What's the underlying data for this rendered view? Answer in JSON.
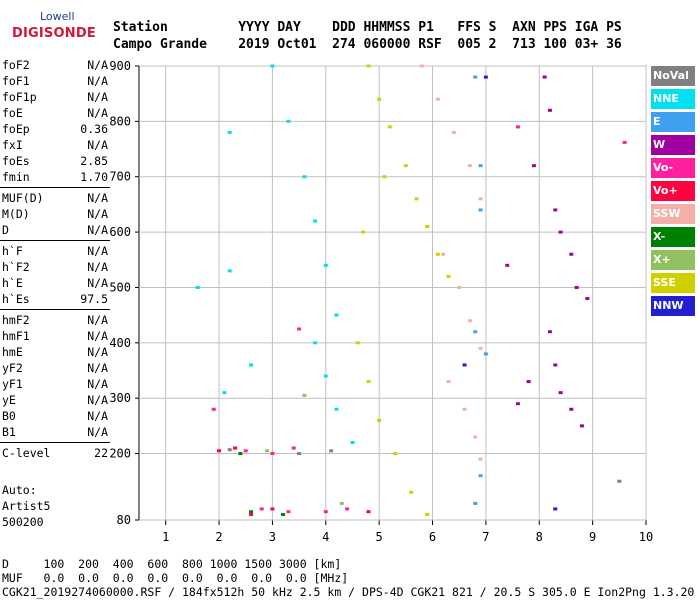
{
  "logo": {
    "line1": "Lowell",
    "line2": "DIGISONDE"
  },
  "header": {
    "line1": "Station         YYYY DAY    DDD HHMMSS P1   FFS S  AXN PPS IGA PS",
    "line2": "Campo Grande    2019 Oct01  274 060000 RSF  005 2  713 100 03+ 36"
  },
  "params": [
    {
      "name": "foF2",
      "value": "N/A"
    },
    {
      "name": "foF1",
      "value": "N/A"
    },
    {
      "name": "foF1p",
      "value": "N/A"
    },
    {
      "name": "foE",
      "value": "N/A"
    },
    {
      "name": "foEp",
      "value": "0.36"
    },
    {
      "name": "fxI",
      "value": "N/A"
    },
    {
      "name": "foEs",
      "value": "2.85"
    },
    {
      "name": "fmin",
      "value": "1.70"
    },
    {
      "name": "MUF(D)",
      "value": "N/A"
    },
    {
      "name": "M(D)",
      "value": "N/A"
    },
    {
      "name": "D",
      "value": "N/A"
    },
    {
      "name": "h`F",
      "value": "N/A"
    },
    {
      "name": "h`F2",
      "value": "N/A"
    },
    {
      "name": "h`E",
      "value": "N/A"
    },
    {
      "name": "h`Es",
      "value": "97.5"
    },
    {
      "name": "hmF2",
      "value": "N/A"
    },
    {
      "name": "hmF1",
      "value": "N/A"
    },
    {
      "name": "hmE",
      "value": "N/A"
    },
    {
      "name": "yF2",
      "value": "N/A"
    },
    {
      "name": "yF1",
      "value": "N/A"
    },
    {
      "name": "yE",
      "value": "N/A"
    },
    {
      "name": "B0",
      "value": "N/A"
    },
    {
      "name": "B1",
      "value": "N/A"
    },
    {
      "name": "C-level",
      "value": "22"
    }
  ],
  "auto": {
    "line1": "Auto:",
    "line2": "Artist5",
    "line3": "500200"
  },
  "bottom": {
    "line1": "D     100  200  400  600  800 1000 1500 3000 [km]",
    "line2": "MUF   0.0  0.0  0.0  0.0  0.0  0.0  0.0  0.0 [MHz]",
    "line3": "CGK21_2019274060000.RSF / 184fx512h 50 kHz 2.5 km / DPS-4D CGK21 821 / 20.5 S 305.0 E Ion2Png 1.3.20"
  },
  "legend": [
    {
      "label": "NoVal",
      "color": "#808080"
    },
    {
      "label": "NNE",
      "color": "#00e0f0"
    },
    {
      "label": "E",
      "color": "#40a0f0"
    },
    {
      "label": "W",
      "color": "#a000a0"
    },
    {
      "label": "Vo-",
      "color": "#ff20a0"
    },
    {
      "label": "Vo+",
      "color": "#ff0040"
    },
    {
      "label": "SSW",
      "color": "#f4b0a8"
    },
    {
      "label": "X-",
      "color": "#008000"
    },
    {
      "label": "X+",
      "color": "#90c060"
    },
    {
      "label": "SSE",
      "color": "#d0d000"
    },
    {
      "label": "NNW",
      "color": "#2020d0"
    }
  ],
  "chart_data": {
    "type": "scatter",
    "xlim": [
      0.5,
      10
    ],
    "ylim": [
      80,
      900
    ],
    "xticks": [
      1,
      2,
      3,
      4,
      5,
      6,
      7,
      8,
      9,
      10
    ],
    "yticks": [
      80,
      200,
      300,
      400,
      500,
      600,
      700,
      800,
      900
    ],
    "grid": true,
    "legend_position": "right",
    "series": [
      {
        "name": "NNE",
        "color": "#00e0f0",
        "points": [
          [
            3.0,
            900
          ],
          [
            3.3,
            800
          ],
          [
            3.6,
            700
          ],
          [
            3.8,
            620
          ],
          [
            4.0,
            540
          ],
          [
            4.2,
            450
          ],
          [
            3.8,
            400
          ],
          [
            4.0,
            340
          ],
          [
            4.2,
            280
          ],
          [
            4.5,
            220
          ],
          [
            2.1,
            310
          ],
          [
            2.2,
            530
          ],
          [
            1.6,
            500
          ],
          [
            2.6,
            360
          ],
          [
            2.2,
            780
          ]
        ]
      },
      {
        "name": "SSE",
        "color": "#d0d000",
        "points": [
          [
            4.8,
            900
          ],
          [
            5.0,
            840
          ],
          [
            5.2,
            790
          ],
          [
            5.5,
            720
          ],
          [
            5.7,
            660
          ],
          [
            5.9,
            610
          ],
          [
            6.1,
            560
          ],
          [
            6.3,
            520
          ],
          [
            4.6,
            400
          ],
          [
            4.8,
            330
          ],
          [
            5.0,
            260
          ],
          [
            5.3,
            200
          ],
          [
            5.6,
            130
          ],
          [
            5.9,
            90
          ],
          [
            4.7,
            600
          ],
          [
            5.1,
            700
          ]
        ]
      },
      {
        "name": "SSW",
        "color": "#f4b0a8",
        "points": [
          [
            5.8,
            900
          ],
          [
            6.1,
            840
          ],
          [
            6.4,
            780
          ],
          [
            6.7,
            720
          ],
          [
            6.9,
            660
          ],
          [
            6.2,
            560
          ],
          [
            6.5,
            500
          ],
          [
            6.7,
            440
          ],
          [
            6.9,
            390
          ],
          [
            6.3,
            330
          ],
          [
            6.6,
            280
          ],
          [
            6.8,
            230
          ],
          [
            6.9,
            190
          ]
        ]
      },
      {
        "name": "E",
        "color": "#40a0f0",
        "points": [
          [
            6.8,
            880
          ],
          [
            6.9,
            720
          ],
          [
            6.9,
            640
          ],
          [
            6.8,
            420
          ],
          [
            7.0,
            380
          ],
          [
            6.9,
            160
          ],
          [
            6.8,
            110
          ]
        ]
      },
      {
        "name": "W",
        "color": "#a000a0",
        "points": [
          [
            8.1,
            880
          ],
          [
            8.2,
            820
          ],
          [
            7.9,
            720
          ],
          [
            8.3,
            640
          ],
          [
            8.4,
            600
          ],
          [
            8.6,
            560
          ],
          [
            8.7,
            500
          ],
          [
            8.9,
            480
          ],
          [
            8.2,
            420
          ],
          [
            8.3,
            360
          ],
          [
            8.4,
            310
          ],
          [
            8.6,
            280
          ],
          [
            8.8,
            250
          ],
          [
            7.4,
            540
          ],
          [
            7.8,
            330
          ],
          [
            7.6,
            290
          ]
        ]
      },
      {
        "name": "Vo-",
        "color": "#ff20a0",
        "points": [
          [
            2.5,
            205
          ],
          [
            3.0,
            200
          ],
          [
            3.4,
            210
          ],
          [
            2.8,
            100
          ],
          [
            3.3,
            95
          ],
          [
            4.0,
            95
          ],
          [
            4.4,
            100
          ],
          [
            3.5,
            425
          ],
          [
            1.9,
            280
          ],
          [
            7.6,
            790
          ],
          [
            9.6,
            762
          ]
        ]
      },
      {
        "name": "Vo+",
        "color": "#ff0040",
        "points": [
          [
            2.0,
            205
          ],
          [
            2.3,
            210
          ],
          [
            2.6,
            90
          ],
          [
            3.0,
            100
          ],
          [
            4.8,
            95
          ]
        ]
      },
      {
        "name": "X-",
        "color": "#008000",
        "points": [
          [
            2.6,
            95
          ],
          [
            3.2,
            90
          ],
          [
            2.4,
            200
          ]
        ]
      },
      {
        "name": "X+",
        "color": "#90c060",
        "points": [
          [
            3.6,
            305
          ],
          [
            4.3,
            110
          ],
          [
            2.9,
            205
          ]
        ]
      },
      {
        "name": "NNW",
        "color": "#2020d0",
        "points": [
          [
            6.6,
            360
          ],
          [
            7.0,
            880
          ],
          [
            8.3,
            100
          ]
        ]
      },
      {
        "name": "NoVal",
        "color": "#808080",
        "points": [
          [
            3.5,
            200
          ],
          [
            4.1,
            205
          ],
          [
            2.2,
            207
          ],
          [
            9.5,
            150
          ]
        ]
      }
    ]
  }
}
